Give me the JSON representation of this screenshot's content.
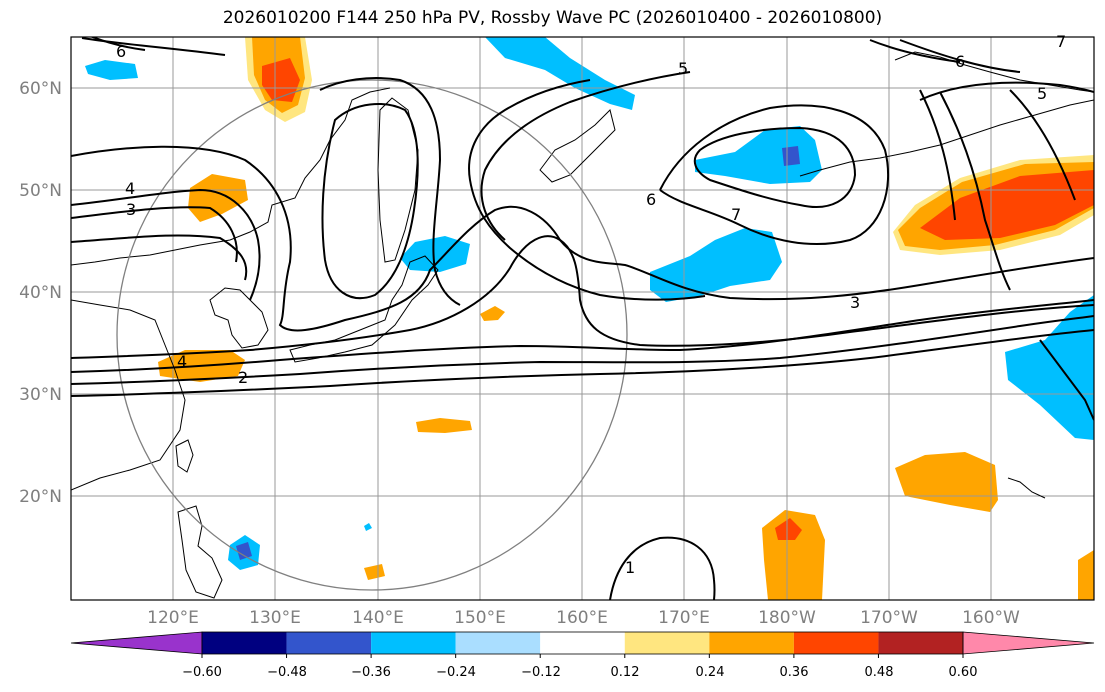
{
  "title": "2026010200 F144 250 hPa PV, Rossby Wave PC (2026010400 - 2026010800)",
  "axes": {
    "lon_labels": [
      "120°E",
      "130°E",
      "140°E",
      "150°E",
      "160°E",
      "170°E",
      "180°W",
      "170°W",
      "160°W"
    ],
    "lat_labels": [
      "60°N",
      "50°N",
      "40°N",
      "30°N",
      "20°N"
    ]
  },
  "contour_labels": [
    "6",
    "4",
    "3",
    "4",
    "2",
    "5",
    "6",
    "7",
    "6",
    "5",
    "7",
    "3",
    "1"
  ],
  "colorbar": {
    "ticks": [
      "−0.60",
      "−0.48",
      "−0.36",
      "−0.24",
      "−0.12",
      "0.12",
      "0.24",
      "0.36",
      "0.48",
      "0.60"
    ],
    "colors": [
      "#9933cc",
      "#000080",
      "#3355cc",
      "#00bfff",
      "#aadeff",
      "#ffffff",
      "#ffe680",
      "#ffa500",
      "#ff4500",
      "#b22222",
      "#ff88aa"
    ]
  },
  "palette": {
    "positive_weak": "#ffe680",
    "positive": "#ffa500",
    "positive_strong": "#ff4500",
    "negative": "#00bfff",
    "negative_strong": "#3355cc",
    "contour": "#000000",
    "grid": "#999999",
    "circle": "#808080"
  }
}
